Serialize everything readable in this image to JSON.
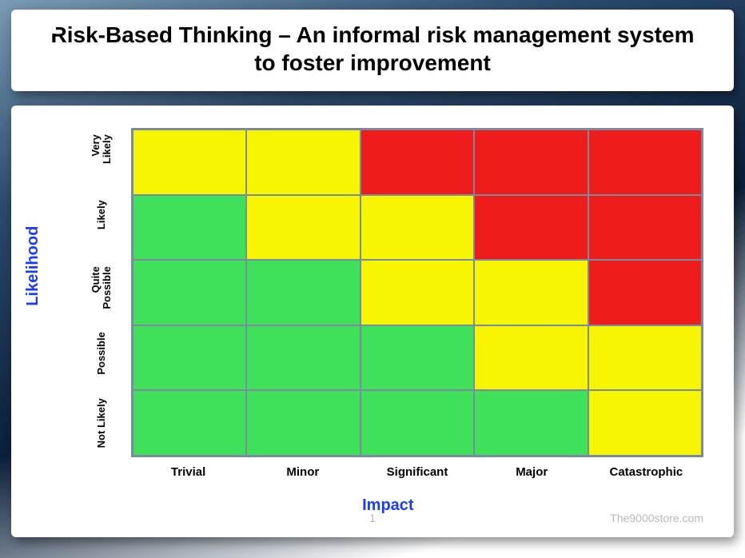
{
  "title": "Risk-Based Thinking – An informal risk management system to foster improvement",
  "matrix": {
    "type": "heatmap",
    "y_axis_title": "Likelihood",
    "x_axis_title": "Impact",
    "y_labels": [
      "Very\nLikely",
      "Likely",
      "Quite\nPossible",
      "Possible",
      "Not Likely"
    ],
    "x_labels": [
      "Trivial",
      "Minor",
      "Significant",
      "Major",
      "Catastrophic"
    ],
    "colors": {
      "green": "#3fe05a",
      "yellow": "#f7f500",
      "red": "#ef1c1c",
      "grid_border": "#7a8aa0",
      "axis_title": "#1a3cff",
      "tick_label": "#000000"
    },
    "cells": [
      [
        "yellow",
        "yellow",
        "red",
        "red",
        "red"
      ],
      [
        "green",
        "yellow",
        "yellow",
        "red",
        "red"
      ],
      [
        "green",
        "green",
        "yellow",
        "yellow",
        "red"
      ],
      [
        "green",
        "green",
        "green",
        "yellow",
        "yellow"
      ],
      [
        "green",
        "green",
        "green",
        "green",
        "yellow"
      ]
    ],
    "label_fontsize_y": 13,
    "label_fontsize_x": 15,
    "axis_title_fontsize": 20,
    "title_fontsize": 28
  },
  "footer": {
    "page": "1",
    "source": "The9000store.com"
  }
}
